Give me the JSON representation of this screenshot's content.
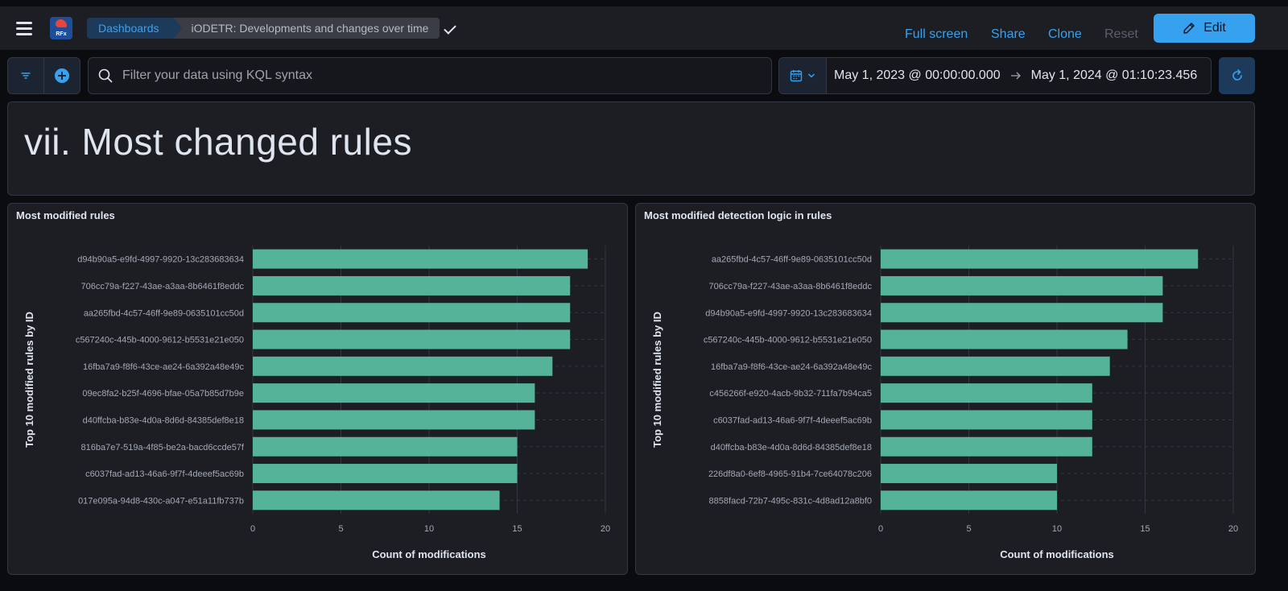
{
  "header": {
    "logo_text": "RFx",
    "breadcrumbs": [
      "Dashboards",
      "iODETR: Developments and changes over time"
    ],
    "actions": {
      "full_screen": "Full screen",
      "share": "Share",
      "clone": "Clone",
      "reset": "Reset",
      "edit": "Edit"
    }
  },
  "query_bar": {
    "search_placeholder": "Filter your data using KQL syntax",
    "date_start": "May 1, 2023 @ 00:00:00.000",
    "date_end": "May 1, 2024 @ 01:10:23.456"
  },
  "markdown_panel": {
    "title": "vii. Most changed rules"
  },
  "colors": {
    "accent": "#36a2ef",
    "bar": "#54b399",
    "panel_bg": "#1d1e24",
    "page_bg": "#0b0c10"
  },
  "chart_data": [
    {
      "type": "bar",
      "orientation": "horizontal",
      "title": "Most modified rules",
      "xlabel": "Count of modifications",
      "ylabel": "Top 10 modified rules by ID",
      "xlim": [
        0,
        20
      ],
      "xticks": [
        0,
        5,
        10,
        15,
        20
      ],
      "categories": [
        "d94b90a5-e9fd-4997-9920-13c283683634",
        "706cc79a-f227-43ae-a3aa-8b6461f8eddc",
        "aa265fbd-4c57-46ff-9e89-0635101cc50d",
        "c567240c-445b-4000-9612-b5531e21e050",
        "16fba7a9-f8f6-43ce-ae24-6a392a48e49c",
        "09ec8fa2-b25f-4696-bfae-05a7b85d7b9e",
        "d40ffcba-b83e-4d0a-8d6d-84385def8e18",
        "816ba7e7-519a-4f85-be2a-bacd6ccde57f",
        "c6037fad-ad13-46a6-9f7f-4deeef5ac69b",
        "017e095a-94d8-430c-a047-e51a11fb737b"
      ],
      "values": [
        19,
        18,
        18,
        18,
        17,
        16,
        16,
        15,
        15,
        14
      ]
    },
    {
      "type": "bar",
      "orientation": "horizontal",
      "title": "Most modified detection logic in rules",
      "xlabel": "Count of modifications",
      "ylabel": "Top 10 modified rules by ID",
      "xlim": [
        0,
        20
      ],
      "xticks": [
        0,
        5,
        10,
        15,
        20
      ],
      "categories": [
        "aa265fbd-4c57-46ff-9e89-0635101cc50d",
        "706cc79a-f227-43ae-a3aa-8b6461f8eddc",
        "d94b90a5-e9fd-4997-9920-13c283683634",
        "c567240c-445b-4000-9612-b5531e21e050",
        "16fba7a9-f8f6-43ce-ae24-6a392a48e49c",
        "c456266f-e920-4acb-9b32-711fa7b94ca5",
        "c6037fad-ad13-46a6-9f7f-4deeef5ac69b",
        "d40ffcba-b83e-4d0a-8d6d-84385def8e18",
        "226df8a0-6ef8-4965-91b4-7ce64078c206",
        "8858facd-72b7-495c-831c-4d8ad12a8bf0"
      ],
      "values": [
        18,
        16,
        16,
        14,
        13,
        12,
        12,
        12,
        10,
        10
      ]
    }
  ]
}
